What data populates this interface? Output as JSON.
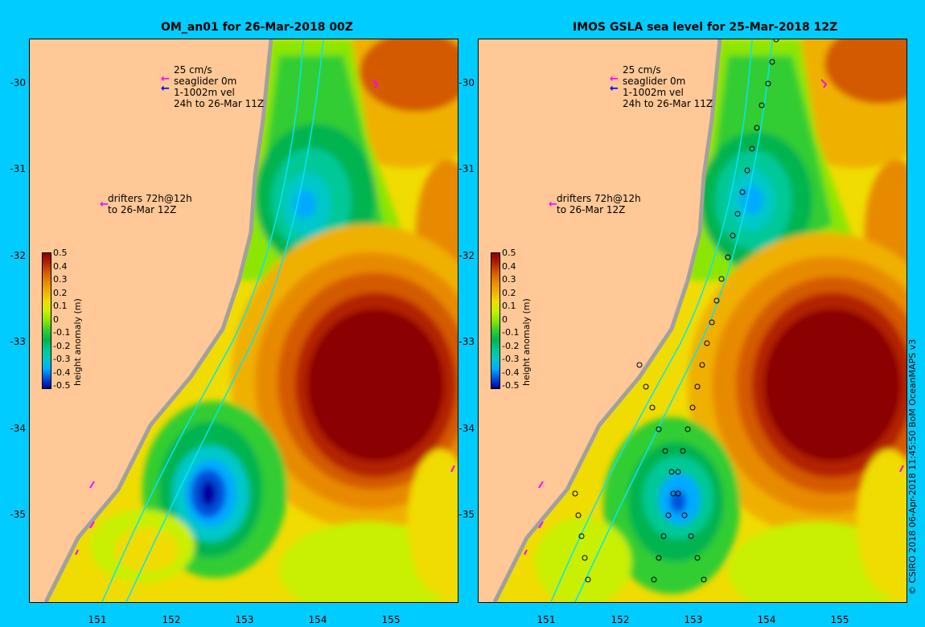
{
  "panels": [
    {
      "title": "OM_an01 for 26-Mar-2018 00Z",
      "legend_vel": [
        "25 cm/s",
        "seaglider 0m",
        "1-1002m vel",
        "24h to 26-Mar 11Z"
      ],
      "legend_drifters": [
        "drifters 72h@12h",
        "to 26-Mar 12Z"
      ]
    },
    {
      "title": "IMOS GSLA sea level  for 25-Mar-2018 12Z",
      "legend_vel": [
        "25 cm/s",
        "seaglider 0m",
        "1-1002m vel",
        "24h to 26-Mar 11Z"
      ],
      "legend_drifters": [
        "drifters 72h@12h",
        "to 26-Mar 12Z"
      ]
    }
  ],
  "lat_ticks": [
    "-30",
    "-31",
    "-32",
    "-33",
    "-34",
    "-35"
  ],
  "lon_ticks": [
    "151",
    "152",
    "153",
    "154",
    "155"
  ],
  "colorbar": {
    "label": "height anomaly (m)",
    "ticks": [
      "0.5",
      "0.4",
      "0.3",
      "0.2",
      "0.1",
      "0",
      "-0.1",
      "-0.2",
      "-0.3",
      "-0.4",
      "-0.5"
    ],
    "colors": [
      "#8b0000",
      "#b22200",
      "#d45a00",
      "#e88a00",
      "#f0b000",
      "#f0dc00",
      "#c8f000",
      "#8ce600",
      "#32cd32",
      "#00b450",
      "#00c896",
      "#00c8c8",
      "#00aaff",
      "#0050dc",
      "#0000a0"
    ]
  },
  "credit": "© CSIRO 2018   06-Apr-2018 11:45:50 BoM OceanMAPS v3",
  "colors": {
    "background": "#00ccff",
    "land": "#ffc896",
    "coast_grey": "#a0a0a0",
    "magenta": "#ff00ff",
    "blue": "#0000ff"
  }
}
